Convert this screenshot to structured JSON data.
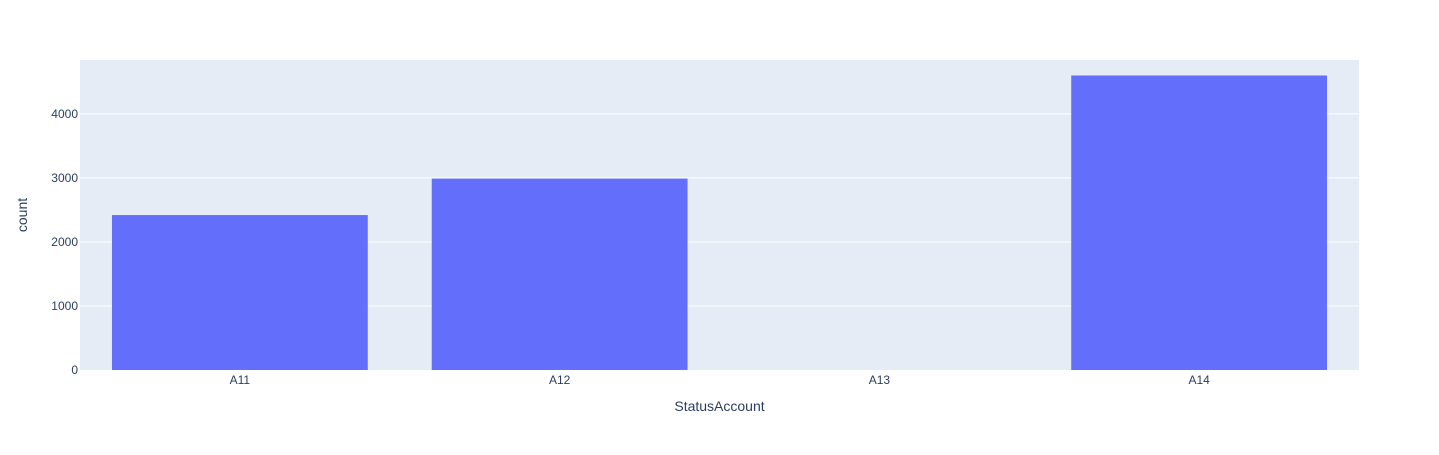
{
  "chart_data": {
    "type": "bar",
    "title": "",
    "xlabel": "StatusAccount",
    "ylabel": "count",
    "categories": [
      "A11",
      "A12",
      "A13",
      "A14"
    ],
    "values": [
      2420,
      2990,
      0,
      4600
    ],
    "ylim": [
      0,
      4842
    ],
    "yticks": [
      0,
      1000,
      2000,
      3000,
      4000
    ],
    "grid": true,
    "legend": "none"
  },
  "colors": {
    "bar": "#636efa",
    "plot_background": "#e5ecf6",
    "gridline": "#ffffff",
    "text": "#2a3f5f"
  }
}
